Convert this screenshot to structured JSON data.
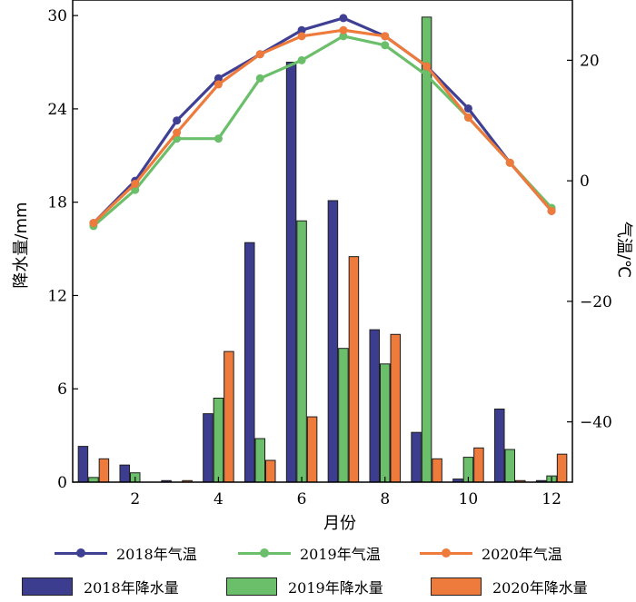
{
  "chart_data": {
    "type": "bar+line",
    "xlabel": "月份",
    "ylabel_left": "降水量/mm",
    "ylabel_right": "气温/℃",
    "x": [
      1,
      2,
      3,
      4,
      5,
      6,
      7,
      8,
      9,
      10,
      11,
      12
    ],
    "x_ticks": [
      "2",
      "4",
      "6",
      "8",
      "10",
      "12"
    ],
    "x_tick_values": [
      2,
      4,
      6,
      8,
      10,
      12
    ],
    "xlim": [
      0.5,
      12.5
    ],
    "ylim_left": [
      0,
      31
    ],
    "left_ticks": [
      "0",
      "6",
      "12",
      "18",
      "24",
      "30"
    ],
    "left_tick_values": [
      0,
      6,
      12,
      18,
      24,
      30
    ],
    "ylim_right": [
      -50,
      30
    ],
    "right_ticks": [
      "−40",
      "−20",
      "0",
      "20"
    ],
    "right_tick_values": [
      -40,
      -20,
      0,
      20
    ],
    "precipitation": [
      {
        "name": "2018年降水量",
        "color": "#3d3d8f",
        "values": [
          2.3,
          1.1,
          0.1,
          4.4,
          15.4,
          27.0,
          18.1,
          9.8,
          3.2,
          0.2,
          4.7,
          0.1
        ]
      },
      {
        "name": "2019年降水量",
        "color": "#6bbf6b",
        "values": [
          0.3,
          0.6,
          0.0,
          5.4,
          2.8,
          16.8,
          8.6,
          7.6,
          29.9,
          1.6,
          2.1,
          0.4
        ]
      },
      {
        "name": "2020年降水量",
        "color": "#ee7a3c",
        "values": [
          1.5,
          0.0,
          0.1,
          8.4,
          1.4,
          4.2,
          14.5,
          9.5,
          1.5,
          2.2,
          0.1,
          1.8
        ]
      }
    ],
    "temperature": [
      {
        "name": "2018年气温",
        "color": "#3f3f93",
        "values": [
          -7,
          0,
          10,
          17,
          21,
          25,
          27,
          24,
          19,
          12,
          3,
          -5
        ]
      },
      {
        "name": "2019年气温",
        "color": "#6bbf6b",
        "values": [
          -7.5,
          -1.5,
          7,
          7,
          17,
          20,
          24,
          22.5,
          17.5,
          10.5,
          3,
          -4.5
        ]
      },
      {
        "name": "2020年气温",
        "color": "#ee7a3c",
        "values": [
          -7,
          -0.5,
          8,
          16,
          21,
          24,
          25,
          24,
          19,
          10.5,
          3,
          -5
        ]
      }
    ]
  }
}
